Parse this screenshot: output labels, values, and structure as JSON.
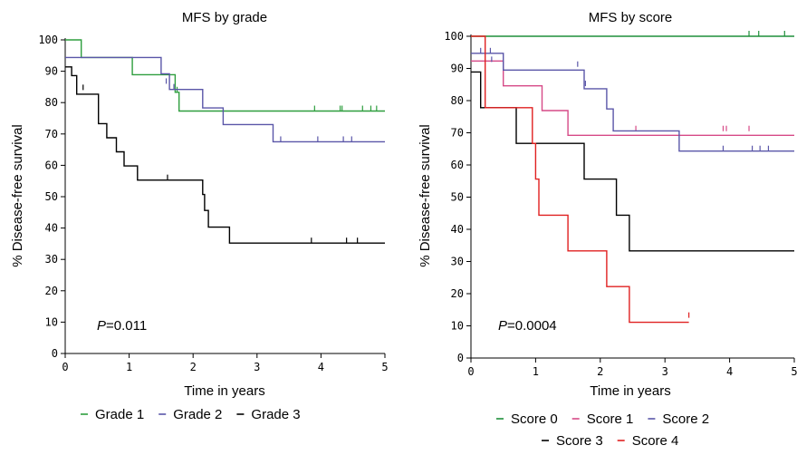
{
  "chart_data": [
    {
      "type": "line",
      "step": true,
      "title": "MFS by grade",
      "xlabel": "Time in years",
      "ylabel": "% Disease-free survival",
      "xlim": [
        0,
        5
      ],
      "ylim": [
        0,
        100
      ],
      "xticks": [
        "0",
        "1",
        "2",
        "3",
        "4",
        "5"
      ],
      "yticks": [
        "0",
        "10",
        "20",
        "30",
        "40",
        "50",
        "60",
        "70",
        "80",
        "90",
        "100"
      ],
      "annotation": {
        "italic": "P",
        "text": "=0.011"
      },
      "legend_position": "bottom",
      "series": [
        {
          "name": "Grade 1",
          "color": "#2e9e3e",
          "x": [
            0,
            0.25,
            0.25,
            1.05,
            1.05,
            1.72,
            1.72,
            1.78,
            1.78,
            5.0
          ],
          "y": [
            100,
            100,
            94.4,
            94.4,
            88.9,
            88.9,
            83.3,
            83.3,
            77.3,
            77.3
          ],
          "censors": [
            [
              1.75,
              83.3
            ],
            [
              3.9,
              77.3
            ],
            [
              4.3,
              77.3
            ],
            [
              4.33,
              77.3
            ],
            [
              4.65,
              77.3
            ],
            [
              4.78,
              77.3
            ],
            [
              4.87,
              77.3
            ]
          ]
        },
        {
          "name": "Grade 2",
          "color": "#5a56a8",
          "x": [
            0,
            1.5,
            1.5,
            1.63,
            1.63,
            2.15,
            2.15,
            2.47,
            2.47,
            3.25,
            3.25,
            5.0
          ],
          "y": [
            94.4,
            94.4,
            89.2,
            89.2,
            84.2,
            84.2,
            78.3,
            78.3,
            73.0,
            73.0,
            67.5,
            67.5
          ],
          "censors": [
            [
              1.58,
              86.0
            ],
            [
              1.7,
              84.2
            ],
            [
              3.37,
              67.5
            ],
            [
              3.95,
              67.5
            ],
            [
              4.35,
              67.5
            ],
            [
              4.48,
              67.5
            ]
          ]
        },
        {
          "name": "Grade 3",
          "color": "#000000",
          "x": [
            0,
            0.1,
            0.1,
            0.18,
            0.18,
            0.33,
            0.33,
            0.52,
            0.52,
            0.65,
            0.65,
            0.8,
            0.8,
            0.92,
            0.92,
            1.02,
            1.02,
            1.13,
            1.13,
            2.15,
            2.15,
            2.18,
            2.18,
            2.24,
            2.24,
            2.57,
            2.57,
            5.0
          ],
          "y": [
            91.4,
            91.4,
            88.6,
            88.6,
            82.7,
            82.7,
            82.7,
            82.7,
            73.3,
            73.3,
            68.8,
            68.8,
            64.3,
            64.3,
            59.8,
            59.8,
            59.8,
            59.8,
            55.3,
            55.3,
            50.7,
            50.7,
            45.6,
            45.6,
            40.3,
            40.3,
            35.2,
            35.2
          ],
          "censors": [
            [
              0.28,
              84.0
            ],
            [
              1.6,
              55.3
            ],
            [
              3.85,
              35.2
            ],
            [
              4.4,
              35.2
            ],
            [
              4.57,
              35.2
            ]
          ]
        }
      ]
    },
    {
      "type": "line",
      "step": true,
      "title": "MFS by score",
      "xlabel": "Time in years",
      "ylabel": "% Disease-free survival",
      "xlim": [
        0,
        5
      ],
      "ylim": [
        0,
        100
      ],
      "xticks": [
        "0",
        "1",
        "2",
        "3",
        "4",
        "5"
      ],
      "yticks": [
        "0",
        "10",
        "20",
        "30",
        "40",
        "50",
        "60",
        "70",
        "80",
        "90",
        "100"
      ],
      "annotation": {
        "italic": "P",
        "text": "=0.0004"
      },
      "legend_position": "bottom",
      "series": [
        {
          "name": "Score 0",
          "color": "#1f8f3a",
          "x": [
            0,
            5.0
          ],
          "y": [
            100,
            100
          ],
          "censors": [
            [
              4.3,
              100
            ],
            [
              4.45,
              100
            ],
            [
              4.85,
              100
            ]
          ]
        },
        {
          "name": "Score 1",
          "color": "#d64a87",
          "x": [
            0,
            0.5,
            0.5,
            1.1,
            1.1,
            1.5,
            1.5,
            5.0
          ],
          "y": [
            92.3,
            92.3,
            84.6,
            84.6,
            76.9,
            76.9,
            69.2,
            69.2
          ],
          "censors": [
            [
              2.55,
              70.5
            ],
            [
              3.9,
              70.5
            ],
            [
              3.95,
              70.5
            ],
            [
              4.3,
              70.5
            ]
          ]
        },
        {
          "name": "Score 2",
          "color": "#5a56a8",
          "x": [
            0,
            0.5,
            0.5,
            1.75,
            1.75,
            2.1,
            2.1,
            2.2,
            2.2,
            3.22,
            3.22,
            5.0
          ],
          "y": [
            94.7,
            94.7,
            89.5,
            89.5,
            83.7,
            83.7,
            77.4,
            77.4,
            70.6,
            70.6,
            64.3,
            64.3
          ],
          "censors": [
            [
              0.15,
              94.7
            ],
            [
              0.3,
              94.7
            ],
            [
              0.32,
              92.0
            ],
            [
              1.65,
              90.5
            ],
            [
              1.77,
              84.5
            ],
            [
              3.9,
              64.3
            ],
            [
              4.35,
              64.3
            ],
            [
              4.47,
              64.3
            ],
            [
              4.6,
              64.3
            ]
          ]
        },
        {
          "name": "Score 3",
          "color": "#000000",
          "x": [
            0,
            0.15,
            0.15,
            0.7,
            0.7,
            1.75,
            1.75,
            2.25,
            2.25,
            2.45,
            2.45,
            5.0
          ],
          "y": [
            88.9,
            88.9,
            77.8,
            77.8,
            66.7,
            66.7,
            55.6,
            55.6,
            44.4,
            44.4,
            33.3,
            33.3
          ],
          "censors": []
        },
        {
          "name": "Score 4",
          "color": "#e02020",
          "x": [
            0,
            0.22,
            0.22,
            0.95,
            0.95,
            1.0,
            1.0,
            1.05,
            1.05,
            1.5,
            1.5,
            2.1,
            2.1,
            2.45,
            2.45,
            3.37
          ],
          "y": [
            100,
            100,
            77.8,
            77.8,
            66.7,
            66.7,
            55.6,
            55.6,
            44.4,
            44.4,
            33.3,
            33.3,
            22.2,
            22.2,
            11.1,
            11.1
          ],
          "censors": [
            [
              3.37,
              12.5
            ]
          ]
        }
      ]
    }
  ]
}
